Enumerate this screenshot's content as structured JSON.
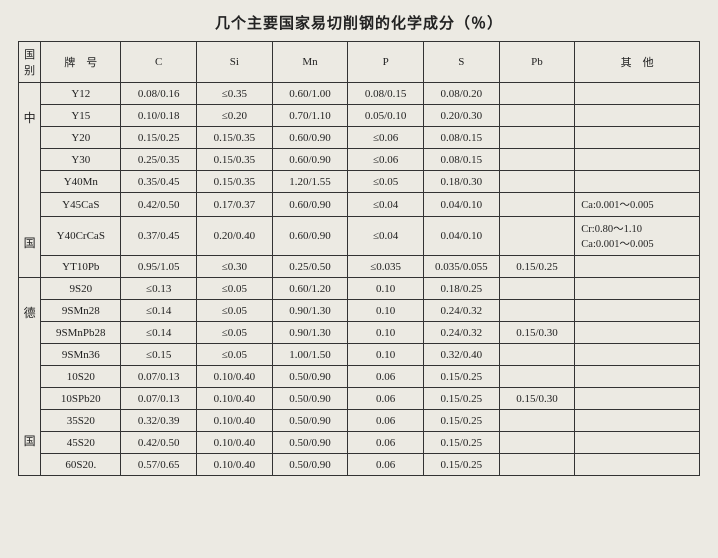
{
  "title": "几个主要国家易切削钢的化学成分（％）",
  "headers": {
    "country": "国别",
    "grade": "牌　号",
    "c": "C",
    "si": "Si",
    "mn": "Mn",
    "p": "P",
    "s": "S",
    "pb": "Pb",
    "other": "其　他"
  },
  "groups": [
    {
      "country_top": "中",
      "country_bottom": "国",
      "rows": [
        {
          "grade": "Y12",
          "c": "0.08/0.16",
          "si": "≤0.35",
          "mn": "0.60/1.00",
          "p": "0.08/0.15",
          "s": "0.08/0.20",
          "pb": "",
          "other": ""
        },
        {
          "grade": "Y15",
          "c": "0.10/0.18",
          "si": "≤0.20",
          "mn": "0.70/1.10",
          "p": "0.05/0.10",
          "s": "0.20/0.30",
          "pb": "",
          "other": ""
        },
        {
          "grade": "Y20",
          "c": "0.15/0.25",
          "si": "0.15/0.35",
          "mn": "0.60/0.90",
          "p": "≤0.06",
          "s": "0.08/0.15",
          "pb": "",
          "other": ""
        },
        {
          "grade": "Y30",
          "c": "0.25/0.35",
          "si": "0.15/0.35",
          "mn": "0.60/0.90",
          "p": "≤0.06",
          "s": "0.08/0.15",
          "pb": "",
          "other": ""
        },
        {
          "grade": "Y40Mn",
          "c": "0.35/0.45",
          "si": "0.15/0.35",
          "mn": "1.20/1.55",
          "p": "≤0.05",
          "s": "0.18/0.30",
          "pb": "",
          "other": ""
        },
        {
          "grade": "Y45CaS",
          "c": "0.42/0.50",
          "si": "0.17/0.37",
          "mn": "0.60/0.90",
          "p": "≤0.04",
          "s": "0.04/0.10",
          "pb": "",
          "other": "Ca:0.001～0.005"
        },
        {
          "grade": "Y40CrCaS",
          "c": "0.37/0.45",
          "si": "0.20/0.40",
          "mn": "0.60/0.90",
          "p": "≤0.04",
          "s": "0.04/0.10",
          "pb": "",
          "other": "Cr:0.80～1.10\nCa:0.001～0.005"
        },
        {
          "grade": "YT10Pb",
          "c": "0.95/1.05",
          "si": "≤0.30",
          "mn": "0.25/0.50",
          "p": "≤0.035",
          "s": "0.035/0.055",
          "pb": "0.15/0.25",
          "other": ""
        }
      ]
    },
    {
      "country_top": "德",
      "country_bottom": "国",
      "rows": [
        {
          "grade": "9S20",
          "c": "≤0.13",
          "si": "≤0.05",
          "mn": "0.60/1.20",
          "p": "0.10",
          "s": "0.18/0.25",
          "pb": "",
          "other": ""
        },
        {
          "grade": "9SMn28",
          "c": "≤0.14",
          "si": "≤0.05",
          "mn": "0.90/1.30",
          "p": "0.10",
          "s": "0.24/0.32",
          "pb": "",
          "other": ""
        },
        {
          "grade": "9SMnPb28",
          "c": "≤0.14",
          "si": "≤0.05",
          "mn": "0.90/1.30",
          "p": "0.10",
          "s": "0.24/0.32",
          "pb": "0.15/0.30",
          "other": ""
        },
        {
          "grade": "9SMn36",
          "c": "≤0.15",
          "si": "≤0.05",
          "mn": "1.00/1.50",
          "p": "0.10",
          "s": "0.32/0.40",
          "pb": "",
          "other": ""
        },
        {
          "grade": "10S20",
          "c": "0.07/0.13",
          "si": "0.10/0.40",
          "mn": "0.50/0.90",
          "p": "0.06",
          "s": "0.15/0.25",
          "pb": "",
          "other": ""
        },
        {
          "grade": "10SPb20",
          "c": "0.07/0.13",
          "si": "0.10/0.40",
          "mn": "0.50/0.90",
          "p": "0.06",
          "s": "0.15/0.25",
          "pb": "0.15/0.30",
          "other": ""
        },
        {
          "grade": "35S20",
          "c": "0.32/0.39",
          "si": "0.10/0.40",
          "mn": "0.50/0.90",
          "p": "0.06",
          "s": "0.15/0.25",
          "pb": "",
          "other": ""
        },
        {
          "grade": "45S20",
          "c": "0.42/0.50",
          "si": "0.10/0.40",
          "mn": "0.50/0.90",
          "p": "0.06",
          "s": "0.15/0.25",
          "pb": "",
          "other": ""
        },
        {
          "grade": "60S20.",
          "c": "0.57/0.65",
          "si": "0.10/0.40",
          "mn": "0.50/0.90",
          "p": "0.06",
          "s": "0.15/0.25",
          "pb": "",
          "other": ""
        }
      ]
    }
  ]
}
